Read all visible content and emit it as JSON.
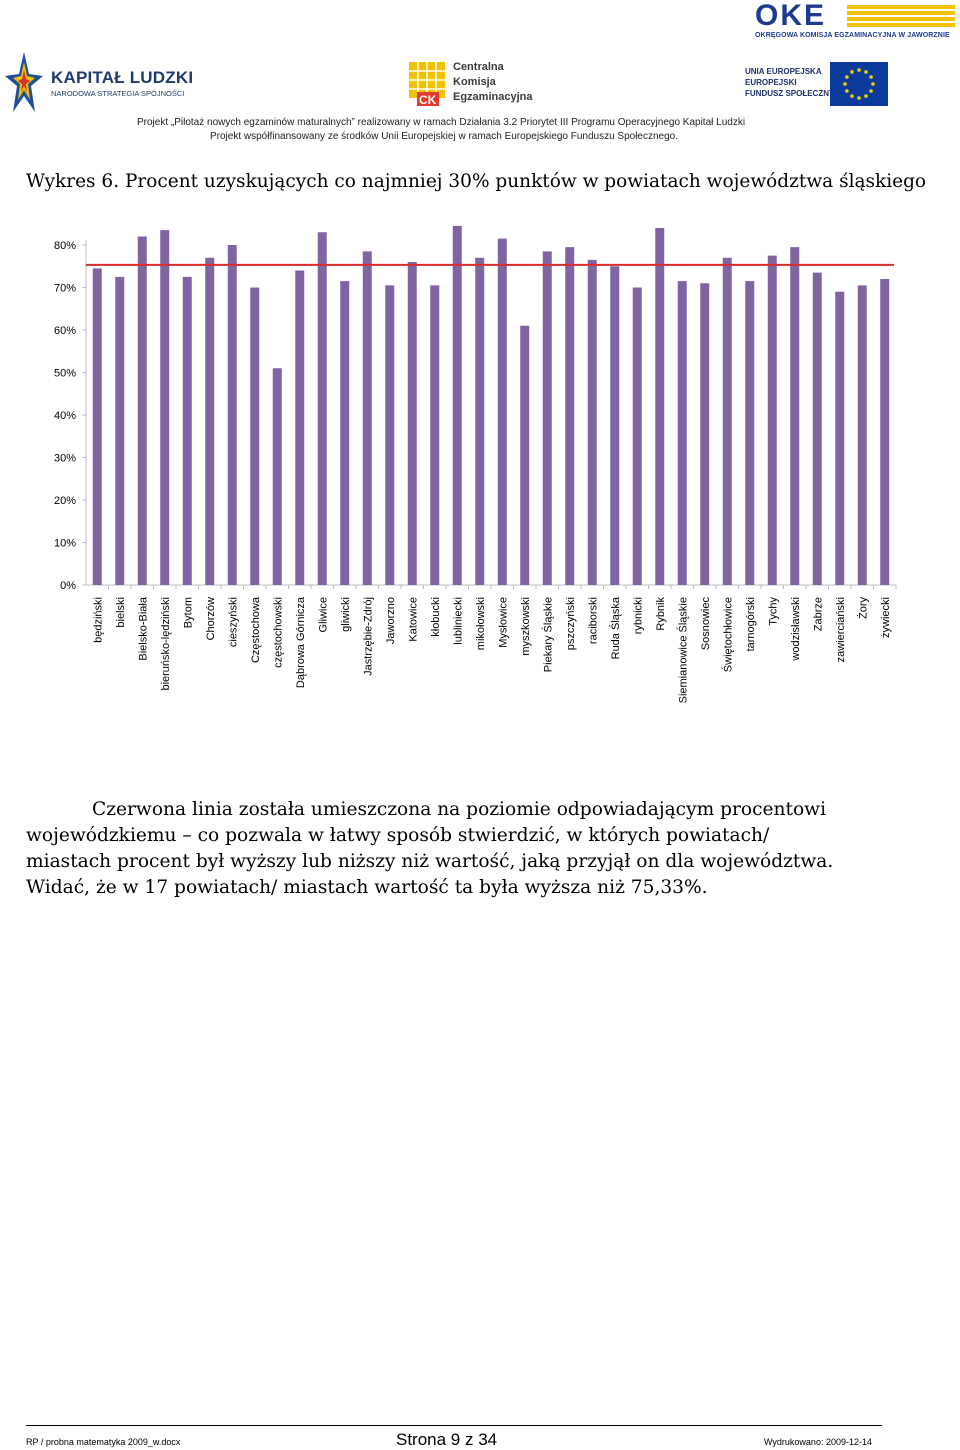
{
  "header": {
    "oke_logo_text": "OKE",
    "oke_subtitle": "OKRĘGOWA KOMISJA EGZAMINACYJNA W JAWORZNIE",
    "kl_title": "KAPITAŁ LUDZKI",
    "kl_subtitle": "NARODOWA STRATEGIA SPÓJNOŚCI",
    "cke_line1": "Centralna",
    "cke_line2": "Komisja",
    "cke_line3": "Egzaminacyjna",
    "ue_line1": "UNIA EUROPEJSKA",
    "ue_line2": "EUROPEJSKI",
    "ue_line3": "FUNDUSZ SPOŁECZNY",
    "project_line1": "Projekt „Pilotaż nowych egzaminów maturalnych” realizowany w ramach Działania 3.2 Priorytet III Programu Operacyjnego Kapitał Ludzki",
    "project_line2": "Projekt współfinansowany ze środków Unii Europejskiej w ramach Europejskiego Funduszu Społecznego."
  },
  "chart_title": "Wykres 6. Procent uzyskujących co najmniej 30% punktów w powiatach województwa śląskiego",
  "chart_data": {
    "type": "bar",
    "categories": [
      "będziński",
      "bielski",
      "Bielsko-Biała",
      "bieruńsko-lędziński",
      "Bytom",
      "Chorzów",
      "cieszyński",
      "Częstochowa",
      "częstochowski",
      "Dąbrowa Górnicza",
      "Gliwice",
      "gliwicki",
      "Jastrzębie-Zdrój",
      "Jaworzno",
      "Katowice",
      "kłobucki",
      "lubliniecki",
      "mikołowski",
      "Mysłowice",
      "myszkowski",
      "Piekary Śląskie",
      "pszczyński",
      "raciborski",
      "Ruda Śląska",
      "rybnicki",
      "Rybnik",
      "Siemianowice Śląskie",
      "Sosnowiec",
      "Świętochłowice",
      "tarnogórski",
      "Tychy",
      "wodzisławski",
      "Zabrze",
      "zawierciański",
      "Żory",
      "żywiecki"
    ],
    "values": [
      74.5,
      72.5,
      82,
      83.5,
      72.5,
      77,
      80,
      70,
      51,
      74,
      83,
      71.5,
      78.5,
      70.5,
      76,
      70.5,
      84.5,
      77,
      81.5,
      61,
      78.5,
      79.5,
      76.5,
      75,
      70,
      84,
      71.5,
      71,
      77,
      71.5,
      77.5,
      79.5,
      73.5,
      69,
      70.5,
      72
    ],
    "reference_line": 75.33,
    "ylim": [
      0,
      80
    ],
    "yticks": [
      "0%",
      "10%",
      "20%",
      "30%",
      "40%",
      "50%",
      "60%",
      "70%",
      "80%"
    ],
    "colors": {
      "bar": "#8064a2",
      "reference": "#d92b2b",
      "axis": "#bfbfbf"
    }
  },
  "paragraph": {
    "line1": "Czerwona linia została umieszczona na poziomie odpowiadającym procentowi",
    "line2": "wojewódzkiemu – co pozwala w łatwy sposób stwierdzić, w których powiatach/",
    "line3": "miastach procent był wyższy lub niższy niż wartość, jaką przyjął on dla województwa.",
    "line4": "Widać, że w 17 powiatach/ miastach wartość ta była wyższa niż 75,33%."
  },
  "footer": {
    "left": "RP / probna matematyka 2009_w.docx",
    "center": "Strona 9 z 34",
    "right": "Wydrukowano: 2009-12-14"
  }
}
